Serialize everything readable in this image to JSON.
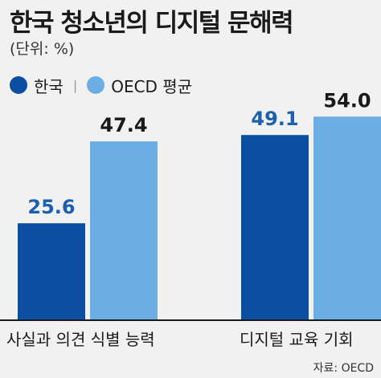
{
  "title": "한국 청소년의 디지털 문해력",
  "unit_label": "(단위: %)",
  "colors": {
    "korea": "#0a4fa2",
    "oecd": "#6aaee3",
    "korea_label": "#1c5fb0",
    "axis": "#1a1a1a",
    "background": "#f1f1f1"
  },
  "legend": {
    "items": [
      {
        "label": "한국",
        "color": "#0a4fa2"
      },
      {
        "label": "OECD 평균",
        "color": "#6aaee3"
      }
    ],
    "separator": "|"
  },
  "chart_data": {
    "type": "bar",
    "categories": [
      "사실과 의견 식별 능력",
      "디지털 교육 기회"
    ],
    "series": [
      {
        "name": "한국",
        "values": [
          25.6,
          49.1
        ],
        "labels": [
          "25.6",
          "49.1"
        ]
      },
      {
        "name": "OECD 평균",
        "values": [
          47.4,
          54.0
        ],
        "labels": [
          "47.4",
          "54.0"
        ]
      }
    ],
    "title": "한국 청소년의 디지털 문해력",
    "xlabel": "",
    "ylabel": "",
    "grid": false,
    "legend_position": "top-left"
  },
  "source": "자료: OECD"
}
